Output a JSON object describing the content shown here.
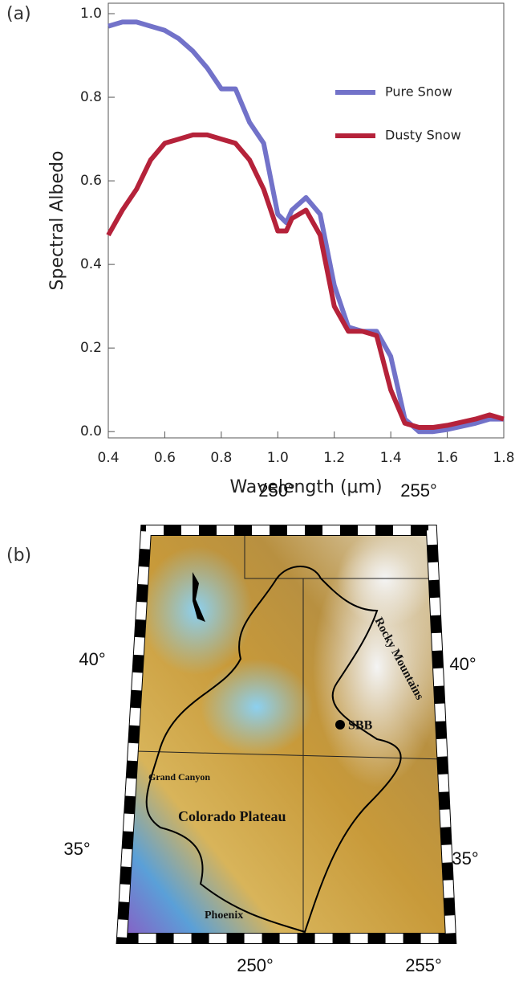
{
  "chart_data": {
    "type": "line",
    "panel_label": "(a)",
    "x_label": "Wavelength (μm)",
    "y_label": "Spectral Albedo",
    "x": [
      0.4,
      0.45,
      0.5,
      0.55,
      0.6,
      0.65,
      0.7,
      0.75,
      0.8,
      0.85,
      0.9,
      0.95,
      1.0,
      1.03,
      1.05,
      1.1,
      1.15,
      1.2,
      1.25,
      1.3,
      1.35,
      1.4,
      1.45,
      1.5,
      1.55,
      1.6,
      1.7,
      1.75,
      1.8
    ],
    "series": [
      {
        "name": "Pure Snow",
        "color": "#7272c9",
        "values": [
          0.97,
          0.98,
          0.98,
          0.97,
          0.96,
          0.94,
          0.91,
          0.87,
          0.82,
          0.82,
          0.74,
          0.69,
          0.52,
          0.5,
          0.53,
          0.56,
          0.52,
          0.35,
          0.25,
          0.24,
          0.24,
          0.18,
          0.03,
          0.0,
          0.0,
          0.005,
          0.02,
          0.03,
          0.03
        ]
      },
      {
        "name": "Dusty Snow",
        "color": "#b5223a",
        "values": [
          0.47,
          0.53,
          0.58,
          0.65,
          0.69,
          0.7,
          0.71,
          0.71,
          0.7,
          0.69,
          0.65,
          0.58,
          0.48,
          0.48,
          0.51,
          0.53,
          0.47,
          0.3,
          0.24,
          0.24,
          0.23,
          0.1,
          0.02,
          0.01,
          0.01,
          0.015,
          0.03,
          0.04,
          0.03
        ]
      }
    ],
    "xlim": [
      0.4,
      1.8
    ],
    "ylim": [
      -0.015,
      1.025
    ],
    "xticks": [
      0.4,
      0.6,
      0.8,
      {
        "value": 1.0,
        "label": "1.0"
      },
      1.2,
      1.4,
      1.6,
      1.8
    ],
    "yticks": [
      {
        "value": 0,
        "label": "0.0"
      },
      0.2,
      0.4,
      0.6,
      0.8,
      {
        "value": 1.0,
        "label": "1.0"
      }
    ],
    "legend": "upper right"
  },
  "map": {
    "panel_label": "(b)",
    "top_labels": [
      "250°",
      "255°"
    ],
    "bottom_labels": [
      "250°",
      "255°"
    ],
    "left_labels": [
      "40°",
      "35°"
    ],
    "right_labels": [
      "40°",
      "35°"
    ],
    "places": [
      "SBB",
      "Rocky Mountains",
      "Grand Canyon",
      "Colorado Plateau",
      "Phoenix"
    ]
  }
}
